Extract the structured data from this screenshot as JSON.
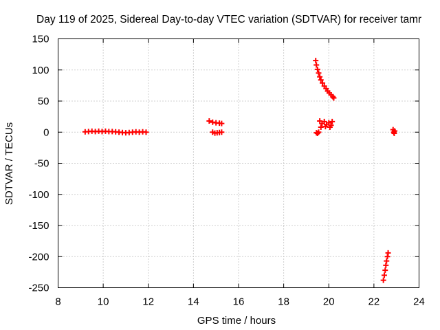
{
  "chart_data": {
    "type": "scatter",
    "title": "Day 119 of 2025, Sidereal Day-to-day VTEC variation (SDTVAR) for receiver tamr",
    "xlabel": "GPS time / hours",
    "ylabel": "SDTVAR / TECUs",
    "xlim": [
      8,
      24
    ],
    "ylim": [
      -250,
      150
    ],
    "xticks": [
      8,
      10,
      12,
      14,
      16,
      18,
      20,
      22,
      24
    ],
    "yticks": [
      150,
      100,
      50,
      0,
      -50,
      -100,
      -150,
      -200,
      -250
    ],
    "xtick_labels": [
      "8",
      "10",
      "12",
      "14",
      "16",
      "18",
      "20",
      "22",
      "24"
    ],
    "ytick_labels": [
      "150",
      "100",
      "50",
      "0",
      "-50",
      "-100",
      "-150",
      "-200",
      "-250"
    ],
    "grid": true,
    "marker": "plus",
    "marker_color": "#ff0000",
    "series": [
      {
        "name": "SDTVAR",
        "points": [
          [
            9.2,
            0.5
          ],
          [
            9.35,
            1
          ],
          [
            9.5,
            1.5
          ],
          [
            9.65,
            1
          ],
          [
            9.8,
            1.5
          ],
          [
            9.95,
            1
          ],
          [
            10.1,
            1.5
          ],
          [
            10.25,
            1
          ],
          [
            10.4,
            1
          ],
          [
            10.55,
            0.5
          ],
          [
            10.7,
            0
          ],
          [
            10.85,
            -0.5
          ],
          [
            11.0,
            -1
          ],
          [
            11.15,
            -0.5
          ],
          [
            11.3,
            0
          ],
          [
            11.45,
            0.5
          ],
          [
            11.6,
            0
          ],
          [
            11.75,
            0.5
          ],
          [
            11.9,
            0
          ],
          [
            14.7,
            18
          ],
          [
            14.85,
            16
          ],
          [
            15.0,
            15
          ],
          [
            15.15,
            14.5
          ],
          [
            15.25,
            14
          ],
          [
            14.85,
            0
          ],
          [
            14.95,
            -1.5
          ],
          [
            15.05,
            -1
          ],
          [
            15.15,
            -0.5
          ],
          [
            15.25,
            0
          ],
          [
            19.42,
            115
          ],
          [
            19.45,
            108
          ],
          [
            19.5,
            101
          ],
          [
            19.55,
            95
          ],
          [
            19.6,
            89
          ],
          [
            19.65,
            84
          ],
          [
            19.72,
            79
          ],
          [
            19.8,
            74
          ],
          [
            19.88,
            70
          ],
          [
            19.95,
            66
          ],
          [
            20.02,
            63
          ],
          [
            20.1,
            60
          ],
          [
            20.18,
            57
          ],
          [
            20.22,
            55
          ],
          [
            19.6,
            18
          ],
          [
            19.7,
            14
          ],
          [
            19.8,
            17
          ],
          [
            19.9,
            12
          ],
          [
            20.0,
            15
          ],
          [
            20.1,
            11
          ],
          [
            20.15,
            17
          ],
          [
            19.65,
            8
          ],
          [
            19.85,
            9
          ],
          [
            20.05,
            8
          ],
          [
            19.45,
            -1
          ],
          [
            19.5,
            -2
          ],
          [
            19.55,
            0
          ],
          [
            22.42,
            -238
          ],
          [
            22.46,
            -230
          ],
          [
            22.5,
            -222
          ],
          [
            22.53,
            -214
          ],
          [
            22.56,
            -207
          ],
          [
            22.6,
            -200
          ],
          [
            22.63,
            -194
          ],
          [
            22.85,
            4
          ],
          [
            22.88,
            0
          ],
          [
            22.9,
            -2
          ],
          [
            22.92,
            2
          ]
        ]
      }
    ]
  }
}
